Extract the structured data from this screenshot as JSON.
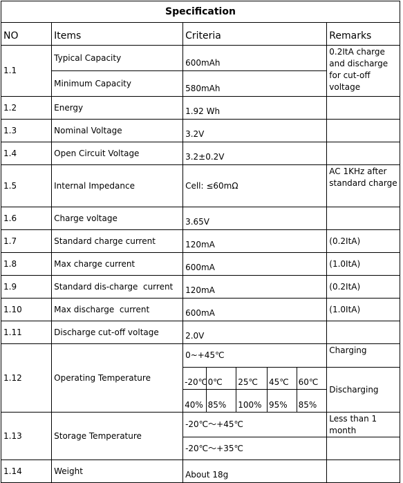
{
  "title": "Specification",
  "headers": {
    "no": "NO",
    "items": "Items",
    "criteria": "Criteria",
    "remarks": "Remarks"
  },
  "rows": {
    "r1_1": {
      "no": "1.1",
      "item_a": "Typical Capacity",
      "crit_a": "600mAh",
      "item_b": "Minimum Capacity",
      "crit_b": "580mAh",
      "remark": "0.2ItA charge and discharge for cut-off voltage"
    },
    "r1_2": {
      "no": "1.2",
      "item": "Energy",
      "crit": "1.92 Wh"
    },
    "r1_3": {
      "no": "1.3",
      "item": "Nominal Voltage",
      "crit": "3.2V"
    },
    "r1_4": {
      "no": "1.4",
      "item": "Open Circuit Voltage",
      "crit": "3.2±0.2V"
    },
    "r1_5": {
      "no": "1.5",
      "item": "Internal Impedance",
      "crit": "Cell: ≤60mΩ",
      "remark": "AC 1KHz after standard charge"
    },
    "r1_6": {
      "no": "1.6",
      "item": "Charge voltage",
      "crit": "3.65V"
    },
    "r1_7": {
      "no": "1.7",
      "item": "Standard charge current",
      "crit": "120mA",
      "remark": "(0.2ItA)"
    },
    "r1_8": {
      "no": "1.8",
      "item": "Max charge current",
      "crit": "600mA",
      "remark": "(1.0ItA)"
    },
    "r1_9": {
      "no": "1.9",
      "item": "Standard dis-charge  current",
      "crit": "120mA",
      "remark": "(0.2ItA)"
    },
    "r1_10": {
      "no": "1.10",
      "item": "Max discharge  current",
      "crit": "600mA",
      "remark": "(1.0ItA)"
    },
    "r1_11": {
      "no": "1.11",
      "item": "Discharge cut-off voltage",
      "crit": "2.0V"
    },
    "r1_12": {
      "no": "1.12",
      "item": "Operating Temperature",
      "charge_range": "0~+45℃",
      "remark_charge": "Charging",
      "remark_discharge": "Discharging",
      "temps": [
        "-20℃",
        "0℃",
        "25℃",
        "45℃",
        "60℃"
      ],
      "pcts": [
        "40%",
        "85%",
        "100%",
        "95%",
        "85%"
      ]
    },
    "r1_13": {
      "no": "1.13",
      "item": "Storage Temperature",
      "crit_a": "-20℃～+45℃",
      "crit_b": "-20℃～+35℃",
      "remark": "Less than 1 month"
    },
    "r1_14": {
      "no": "1.14",
      "item": "Weight",
      "crit": "About 18g"
    }
  }
}
